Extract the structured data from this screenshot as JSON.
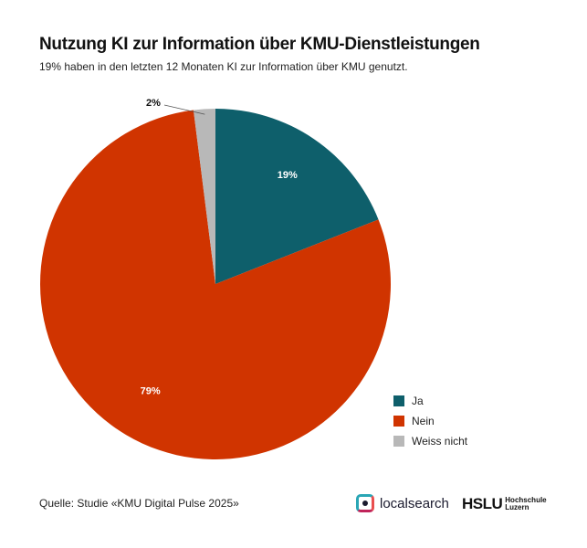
{
  "chart_data": {
    "type": "pie",
    "title": "Nutzung KI zur Information über KMU-Dienstleistungen",
    "subtitle": "19% haben in den letzten 12 Monaten KI zur Information über KMU genutzt.",
    "categories": [
      "Ja",
      "Nein",
      "Weiss nicht"
    ],
    "values": [
      19,
      79,
      2
    ],
    "labels": [
      "19%",
      "79%",
      "2%"
    ],
    "colors": [
      "#0e5f6b",
      "#d03400",
      "#b8b8b8"
    ],
    "legend_position": "bottom-right",
    "start": "top, clockwise"
  },
  "footer": {
    "source": "Quelle: Studie «KMU Digital Pulse 2025»",
    "logo1": "localsearch",
    "logo2": "HSLU",
    "logo2_sub1": "Hochschule",
    "logo2_sub2": "Luzern"
  }
}
